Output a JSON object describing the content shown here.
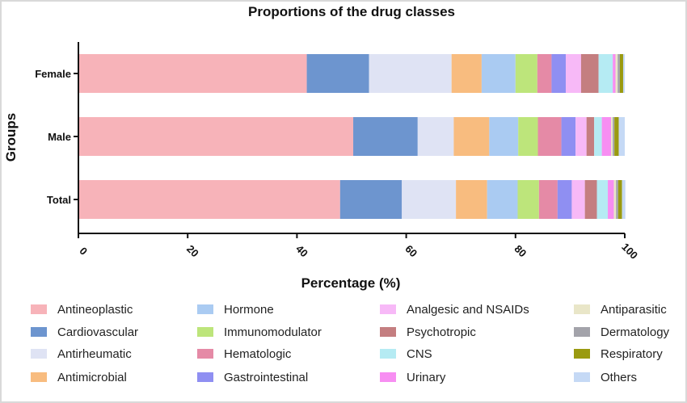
{
  "chart_data": {
    "type": "bar",
    "orientation": "horizontal",
    "stacked": true,
    "title": "Proportions of the drug classes",
    "xlabel": "Percentage (%)",
    "ylabel": "Groups",
    "xlim": [
      0,
      100
    ],
    "xticks": [
      "0",
      "20",
      "40",
      "60",
      "80",
      "100"
    ],
    "categories": [
      "Female",
      "Male",
      "Total"
    ],
    "series": [
      {
        "name": "Antineoplastic",
        "color": "#f7b3b9",
        "values": [
          41.8,
          50.3,
          47.9
        ]
      },
      {
        "name": "Cardiovascular",
        "color": "#6d95cf",
        "values": [
          11.4,
          11.8,
          11.3
        ]
      },
      {
        "name": "Antirheumatic",
        "color": "#dfe3f4",
        "values": [
          15.1,
          6.6,
          9.9
        ]
      },
      {
        "name": "Antimicrobial",
        "color": "#f8bc7f",
        "values": [
          5.5,
          6.5,
          5.7
        ]
      },
      {
        "name": "Hormone",
        "color": "#aacbf2",
        "values": [
          6.2,
          5.3,
          5.6
        ]
      },
      {
        "name": "Immunomodulator",
        "color": "#bde57b",
        "values": [
          4.0,
          3.6,
          3.9
        ]
      },
      {
        "name": "Hematologic",
        "color": "#e58aa6",
        "values": [
          2.6,
          4.3,
          3.4
        ]
      },
      {
        "name": "Gastrointestinal",
        "color": "#8f8ff2",
        "values": [
          2.6,
          2.6,
          2.6
        ]
      },
      {
        "name": "Analgesic and NSAIDs",
        "color": "#f7b9f7",
        "values": [
          2.8,
          2.0,
          2.4
        ]
      },
      {
        "name": "Psychotropic",
        "color": "#c47e80",
        "values": [
          3.2,
          1.4,
          2.2
        ]
      },
      {
        "name": "CNS",
        "color": "#b5ebf3",
        "values": [
          2.6,
          1.4,
          2.0
        ]
      },
      {
        "name": "Urinary",
        "color": "#f78ef2",
        "values": [
          0.5,
          1.7,
          1.1
        ]
      },
      {
        "name": "Antiparasitic",
        "color": "#e9e6c8",
        "values": [
          0.4,
          0.3,
          0.4
        ]
      },
      {
        "name": "Dermatology",
        "color": "#a3a3aa",
        "values": [
          0.4,
          0.3,
          0.4
        ]
      },
      {
        "name": "Respiratory",
        "color": "#9a9a10",
        "values": [
          0.6,
          0.8,
          0.7
        ]
      },
      {
        "name": "Others",
        "color": "#c5d9f5",
        "values": [
          0.3,
          1.1,
          0.6
        ]
      }
    ],
    "grid": false,
    "legend_position": "bottom"
  }
}
